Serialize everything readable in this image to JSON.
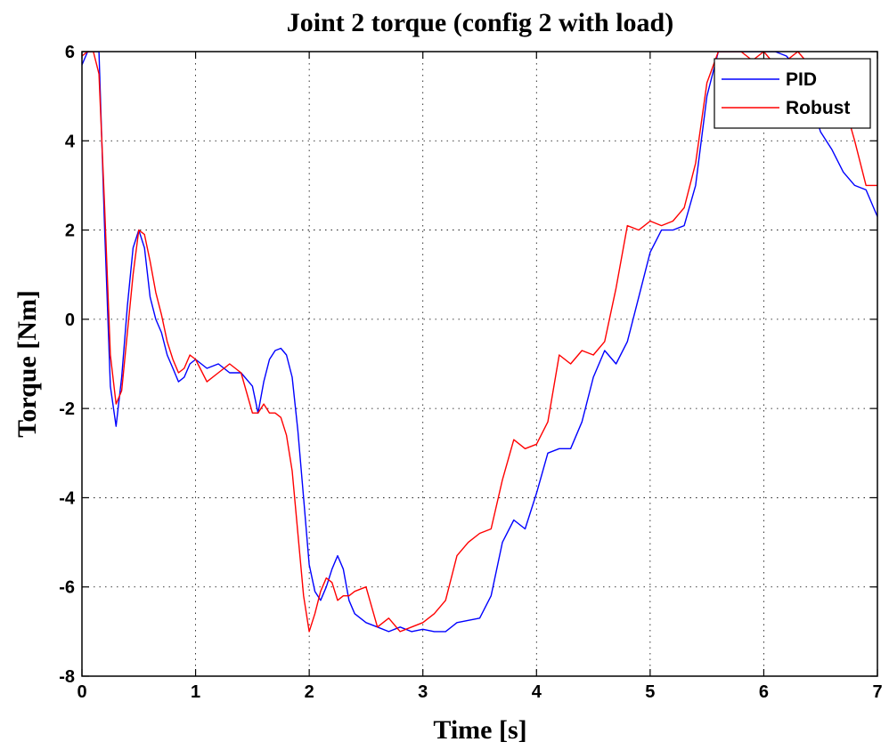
{
  "chart_data": {
    "type": "line",
    "title": "Joint 2 torque (config 2 with load)",
    "xlabel": "Time [s]",
    "ylabel": "Torque [Nm]",
    "xlim": [
      0,
      7
    ],
    "ylim": [
      -8,
      6
    ],
    "xticks": [
      "0",
      "1",
      "2",
      "3",
      "4",
      "5",
      "6",
      "7"
    ],
    "yticks": [
      "6",
      "4",
      "2",
      "0",
      "-2",
      "-4",
      "-6",
      "-8"
    ],
    "grid": true,
    "legend_position": "top-right",
    "series": [
      {
        "name": "PID",
        "color": "#0000ff",
        "x": [
          0,
          0.05,
          0.1,
          0.15,
          0.2,
          0.25,
          0.3,
          0.35,
          0.4,
          0.45,
          0.5,
          0.55,
          0.6,
          0.65,
          0.7,
          0.75,
          0.8,
          0.85,
          0.9,
          0.95,
          1.0,
          1.1,
          1.2,
          1.3,
          1.4,
          1.5,
          1.55,
          1.6,
          1.65,
          1.7,
          1.75,
          1.8,
          1.85,
          1.9,
          1.95,
          2.0,
          2.05,
          2.1,
          2.15,
          2.2,
          2.25,
          2.3,
          2.35,
          2.4,
          2.5,
          2.6,
          2.7,
          2.8,
          2.9,
          3.0,
          3.1,
          3.2,
          3.3,
          3.4,
          3.5,
          3.6,
          3.7,
          3.8,
          3.9,
          4.0,
          4.1,
          4.2,
          4.3,
          4.4,
          4.5,
          4.6,
          4.7,
          4.8,
          4.9,
          5.0,
          5.1,
          5.2,
          5.3,
          5.4,
          5.5,
          5.6,
          5.7,
          5.8,
          5.9,
          6.0,
          6.1,
          6.2,
          6.3,
          6.4,
          6.5,
          6.6,
          6.7,
          6.8,
          6.9,
          7.0
        ],
        "y": [
          5.7,
          6.0,
          6.0,
          6.0,
          2.0,
          -1.5,
          -2.4,
          -1.3,
          0.3,
          1.6,
          2.0,
          1.6,
          0.5,
          0.0,
          -0.3,
          -0.8,
          -1.1,
          -1.4,
          -1.3,
          -1.0,
          -0.9,
          -1.1,
          -1.0,
          -1.2,
          -1.2,
          -1.5,
          -2.1,
          -1.4,
          -0.9,
          -0.7,
          -0.65,
          -0.8,
          -1.3,
          -2.5,
          -4.0,
          -5.5,
          -6.1,
          -6.3,
          -6.0,
          -5.6,
          -5.3,
          -5.6,
          -6.3,
          -6.6,
          -6.8,
          -6.9,
          -7.0,
          -6.9,
          -7.0,
          -6.95,
          -7.0,
          -7.0,
          -6.8,
          -6.75,
          -6.7,
          -6.2,
          -5.0,
          -4.5,
          -4.7,
          -3.9,
          -3.0,
          -2.9,
          -2.9,
          -2.3,
          -1.3,
          -0.7,
          -1.0,
          -0.5,
          0.5,
          1.5,
          2.0,
          2.0,
          2.1,
          3.0,
          5.0,
          6.0,
          6.0,
          6.0,
          6.0,
          6.0,
          6.0,
          5.9,
          5.6,
          5.0,
          4.2,
          3.8,
          3.3,
          3.0,
          2.9,
          2.3
        ]
      },
      {
        "name": "Robust",
        "color": "#ff0000",
        "x": [
          0,
          0.05,
          0.1,
          0.15,
          0.2,
          0.25,
          0.3,
          0.35,
          0.4,
          0.45,
          0.5,
          0.55,
          0.6,
          0.65,
          0.7,
          0.75,
          0.8,
          0.85,
          0.9,
          0.95,
          1.0,
          1.1,
          1.2,
          1.3,
          1.4,
          1.5,
          1.55,
          1.6,
          1.65,
          1.7,
          1.75,
          1.8,
          1.85,
          1.9,
          1.95,
          2.0,
          2.05,
          2.1,
          2.15,
          2.2,
          2.25,
          2.3,
          2.35,
          2.4,
          2.5,
          2.6,
          2.7,
          2.8,
          2.9,
          3.0,
          3.1,
          3.2,
          3.3,
          3.4,
          3.5,
          3.6,
          3.7,
          3.8,
          3.9,
          4.0,
          4.1,
          4.2,
          4.3,
          4.4,
          4.5,
          4.6,
          4.7,
          4.8,
          4.9,
          5.0,
          5.1,
          5.2,
          5.3,
          5.4,
          5.5,
          5.6,
          5.7,
          5.8,
          5.9,
          6.0,
          6.1,
          6.2,
          6.3,
          6.4,
          6.5,
          6.6,
          6.7,
          6.8,
          6.9,
          7.0
        ],
        "y": [
          5.9,
          6.0,
          6.0,
          5.5,
          2.5,
          -0.8,
          -1.9,
          -1.6,
          -0.3,
          1.0,
          2.0,
          1.9,
          1.3,
          0.6,
          0.1,
          -0.5,
          -0.9,
          -1.2,
          -1.1,
          -0.8,
          -0.9,
          -1.4,
          -1.2,
          -1.0,
          -1.2,
          -2.1,
          -2.1,
          -1.9,
          -2.1,
          -2.1,
          -2.2,
          -2.6,
          -3.4,
          -4.8,
          -6.2,
          -7.0,
          -6.6,
          -6.1,
          -5.8,
          -5.9,
          -6.3,
          -6.2,
          -6.2,
          -6.1,
          -6.0,
          -6.9,
          -6.7,
          -7.0,
          -6.9,
          -6.8,
          -6.6,
          -6.3,
          -5.3,
          -5.0,
          -4.8,
          -4.7,
          -3.6,
          -2.7,
          -2.9,
          -2.8,
          -2.3,
          -0.8,
          -1.0,
          -0.7,
          -0.8,
          -0.5,
          0.7,
          2.1,
          2.0,
          2.2,
          2.1,
          2.2,
          2.5,
          3.5,
          5.3,
          6.0,
          6.0,
          6.0,
          5.8,
          6.0,
          5.7,
          5.8,
          6.0,
          5.7,
          5.2,
          5.1,
          4.9,
          4.0,
          3.0,
          3.0
        ]
      }
    ]
  }
}
